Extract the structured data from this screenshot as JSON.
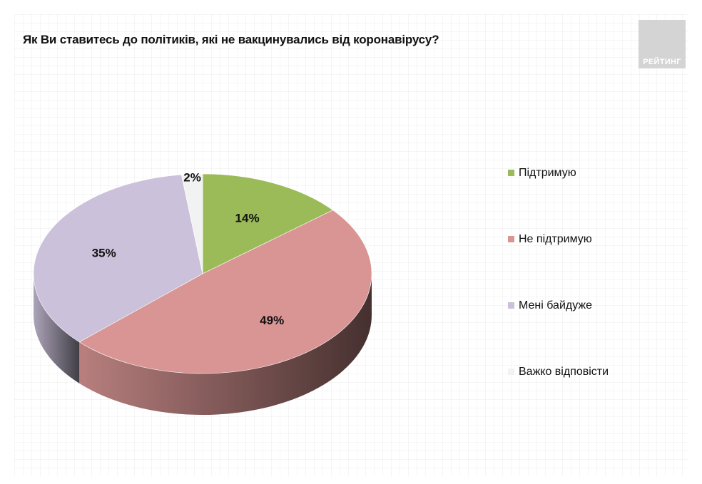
{
  "title": "Як Ви ставитесь до політиків, які не вакцинувались від коронавірусу?",
  "logo": {
    "text": "РЕЙТИНГ"
  },
  "chart_data": {
    "type": "pie",
    "title": "Як Ви ставитесь до політиків, які не вакцинувались від коронавірусу?",
    "slices": [
      {
        "label": "Підтримую",
        "value": 14,
        "display": "14%",
        "color": "#9bbb59"
      },
      {
        "label": "Не підтримую",
        "value": 49,
        "display": "49%",
        "color": "#d99594"
      },
      {
        "label": "Мені байдуже",
        "value": 35,
        "display": "35%",
        "color": "#ccc1da"
      },
      {
        "label": "Важко відповісти",
        "value": 2,
        "display": "2%",
        "color": "#f2f2f2"
      }
    ],
    "legend_position": "right",
    "three_d": true
  }
}
